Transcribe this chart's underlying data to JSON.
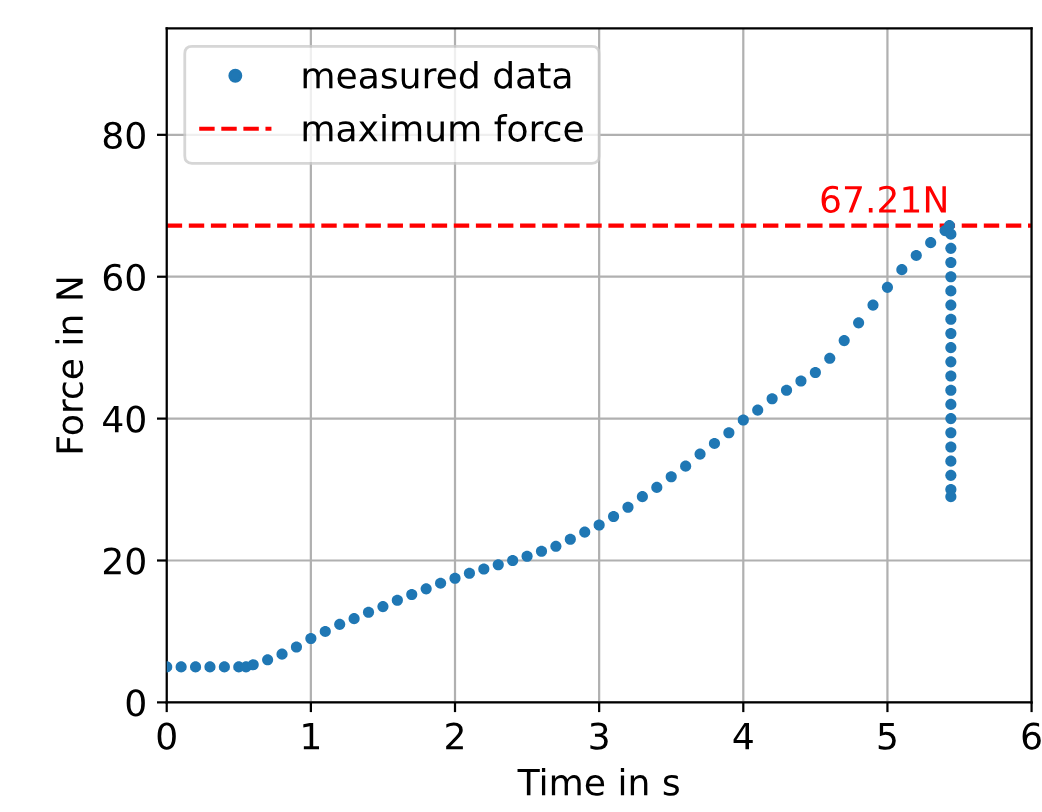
{
  "chart_data": {
    "type": "scatter",
    "xlabel": "Time in s",
    "ylabel": "Force in N",
    "x": [
      0,
      0.1,
      0.2,
      0.3,
      0.4,
      0.5,
      0.55,
      0.6,
      0.7,
      0.8,
      0.9,
      1.0,
      1.1,
      1.2,
      1.3,
      1.4,
      1.5,
      1.6,
      1.7,
      1.8,
      1.9,
      2.0,
      2.1,
      2.2,
      2.3,
      2.4,
      2.5,
      2.6,
      2.7,
      2.8,
      2.9,
      3.0,
      3.1,
      3.2,
      3.3,
      3.4,
      3.5,
      3.6,
      3.7,
      3.8,
      3.9,
      4.0,
      4.1,
      4.2,
      4.3,
      4.4,
      4.5,
      4.6,
      4.7,
      4.8,
      4.9,
      5.0,
      5.1,
      5.2,
      5.3,
      5.4,
      5.43,
      5.44,
      5.44,
      5.44,
      5.44,
      5.44,
      5.44,
      5.44,
      5.44,
      5.44,
      5.44,
      5.44,
      5.44,
      5.44,
      5.44,
      5.44,
      5.44,
      5.44,
      5.44,
      5.44,
      5.44
    ],
    "series": [
      {
        "name": "measured data",
        "color": "#1f77b4",
        "values": [
          5,
          5,
          5,
          5,
          5,
          5,
          5,
          5.3,
          6,
          6.8,
          7.8,
          9,
          10,
          11,
          11.8,
          12.7,
          13.5,
          14.4,
          15.2,
          16,
          16.8,
          17.5,
          18.2,
          18.8,
          19.4,
          20,
          20.6,
          21.3,
          22,
          23,
          24,
          25,
          26.2,
          27.5,
          29,
          30.3,
          31.8,
          33.3,
          35,
          36.5,
          38,
          39.8,
          41.2,
          42.8,
          44,
          45.3,
          46.5,
          48.5,
          51,
          53.5,
          56,
          58.5,
          61,
          63,
          64.8,
          66.5,
          67.21,
          66,
          64,
          62,
          60,
          58,
          56,
          54,
          52,
          50,
          48,
          46,
          44,
          42,
          40,
          38,
          36,
          34,
          32,
          30,
          29
        ]
      }
    ],
    "ref_lines": [
      {
        "axis": "y",
        "value": 67.21,
        "label": "maximum force",
        "color": "#ff0000",
        "line_style": "dashed"
      }
    ],
    "annotations": [
      {
        "text": "67.21N",
        "x": 5.43,
        "y": 67.21
      }
    ],
    "xlim": [
      0,
      6
    ],
    "ylim": [
      0,
      95
    ],
    "xticks": [
      0,
      1,
      2,
      3,
      4,
      5,
      6
    ],
    "yticks": [
      0,
      20,
      40,
      60,
      80
    ],
    "grid": true,
    "legend": "top left",
    "marker": "circle"
  }
}
